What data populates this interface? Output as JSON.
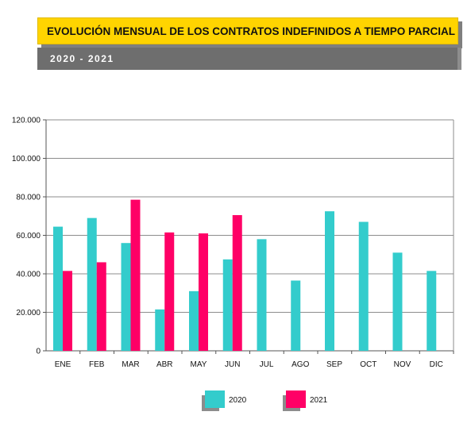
{
  "header": {
    "title": "EVOLUCIÓN MENSUAL DE LOS CONTRATOS INDEFINIDOS A TIEMPO PARCIAL",
    "years": "2020 - 2021"
  },
  "colors": {
    "banner": "#ffd400",
    "years_bar": "#6e6e6e",
    "series_2020": "#33cccc",
    "series_2021": "#ff0066"
  },
  "chart_data": {
    "type": "bar",
    "categories": [
      "ENE",
      "FEB",
      "MAR",
      "ABR",
      "MAY",
      "JUN",
      "JUL",
      "AGO",
      "SEP",
      "OCT",
      "NOV",
      "DIC"
    ],
    "series": [
      {
        "name": "2020",
        "color": "#33cccc",
        "values": [
          64500,
          69000,
          56000,
          21500,
          31000,
          47500,
          58000,
          36500,
          72500,
          67000,
          51000,
          41500
        ]
      },
      {
        "name": "2021",
        "color": "#ff0066",
        "values": [
          41500,
          46000,
          78500,
          61500,
          61000,
          70500,
          null,
          null,
          null,
          null,
          null,
          null
        ]
      }
    ],
    "ylim": [
      0,
      120000
    ],
    "yticks": [
      0,
      20000,
      40000,
      60000,
      80000,
      100000,
      120000
    ],
    "ytick_labels": [
      "0",
      "20.000",
      "40.000",
      "60.000",
      "80.000",
      "100.000",
      "120.000"
    ],
    "grid": true,
    "legend_position": "bottom"
  }
}
